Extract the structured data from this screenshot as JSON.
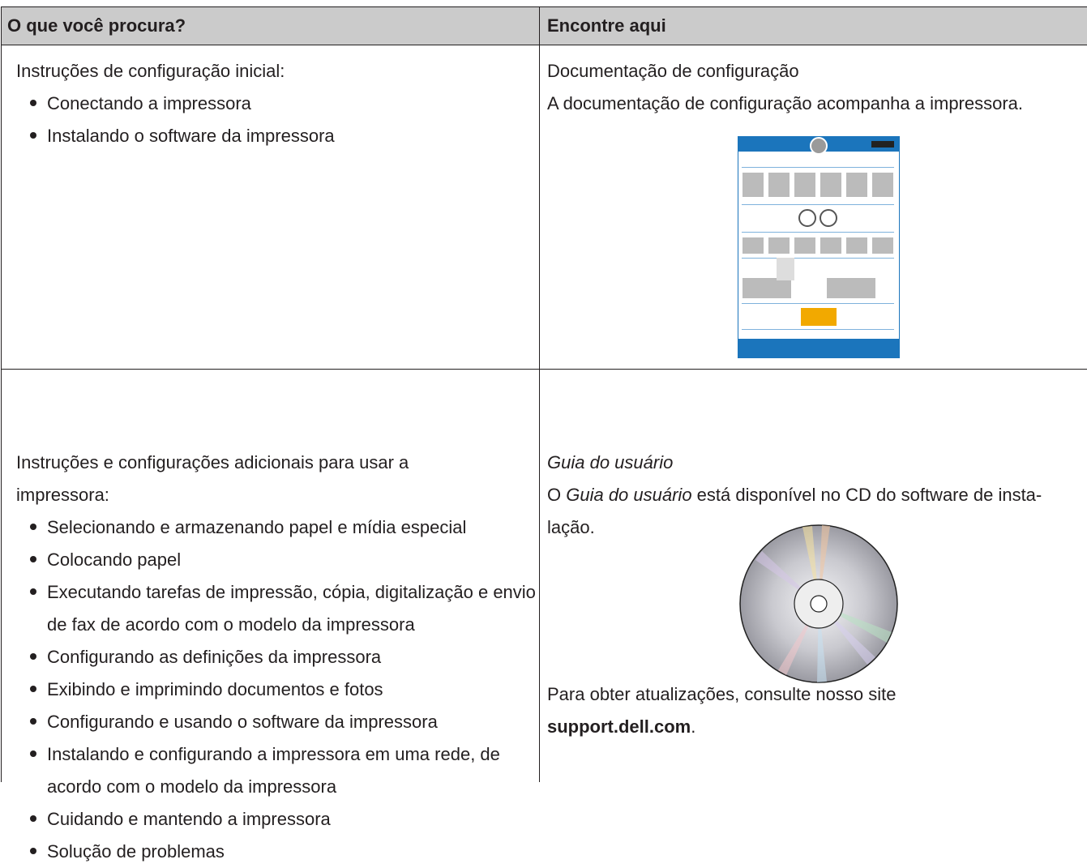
{
  "table": {
    "header": [
      "O que você procura?",
      "Encontre aqui"
    ],
    "rows": [
      {
        "left": {
          "intro": "Instruções de configuração inicial:",
          "items": [
            "Conectando a impressora",
            "Instalando o software da impressora"
          ]
        },
        "right": {
          "title": "Documentação de configuração",
          "text": "A documentação de configuração acompanha a impressora."
        }
      },
      {
        "left": {
          "intro": "Instruções e configurações adicionais para usar a impressora:",
          "items": [
            "Selecionando e armazenando papel e mídia especial",
            "Colocando papel",
            "Executando tarefas de impressão, cópia, digitalização e envio de fax de acordo com o modelo da impressora",
            "Configurando as definições da impressora",
            "Exibindo e imprimindo documentos e fotos",
            "Configurando e usando o software da impressora",
            "Instalando e configurando a impressora em uma rede, de acordo com o modelo da impressora",
            "Cuidando e mantendo a impressora",
            "Solução de problemas"
          ]
        },
        "right": {
          "title": "Guia do usuário",
          "text_prefix": "O ",
          "text_italic": "Guia do usuário",
          "text_suffix": " está disponível no CD do software de insta-lação.",
          "note": "Para obter atualizações, consulte nosso site",
          "note_link": "support.dell.com",
          "note_end": "."
        }
      }
    ]
  }
}
